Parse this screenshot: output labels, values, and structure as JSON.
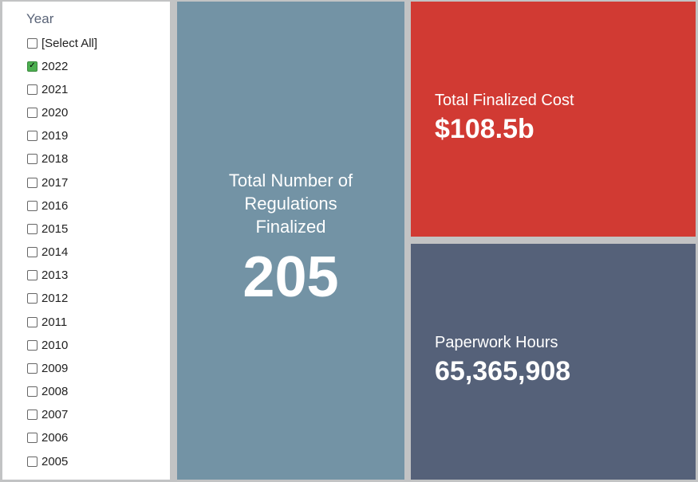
{
  "filter": {
    "title": "Year",
    "options": [
      {
        "label": "[Select All]",
        "checked": false
      },
      {
        "label": "2022",
        "checked": true
      },
      {
        "label": "2021",
        "checked": false
      },
      {
        "label": "2020",
        "checked": false
      },
      {
        "label": "2019",
        "checked": false
      },
      {
        "label": "2018",
        "checked": false
      },
      {
        "label": "2017",
        "checked": false
      },
      {
        "label": "2016",
        "checked": false
      },
      {
        "label": "2015",
        "checked": false
      },
      {
        "label": "2014",
        "checked": false
      },
      {
        "label": "2013",
        "checked": false
      },
      {
        "label": "2012",
        "checked": false
      },
      {
        "label": "2011",
        "checked": false
      },
      {
        "label": "2010",
        "checked": false
      },
      {
        "label": "2009",
        "checked": false
      },
      {
        "label": "2008",
        "checked": false
      },
      {
        "label": "2007",
        "checked": false
      },
      {
        "label": "2006",
        "checked": false
      },
      {
        "label": "2005",
        "checked": false
      }
    ]
  },
  "cards": {
    "regulations": {
      "label": "Total Number of Regulations Finalized",
      "value": "205",
      "color": "#7393a5"
    },
    "cost": {
      "label": "Total Finalized Cost",
      "value": "$108.5b",
      "color": "#d13a33"
    },
    "paperwork": {
      "label": "Paperwork Hours",
      "value": "65,365,908",
      "color": "#556179"
    }
  }
}
